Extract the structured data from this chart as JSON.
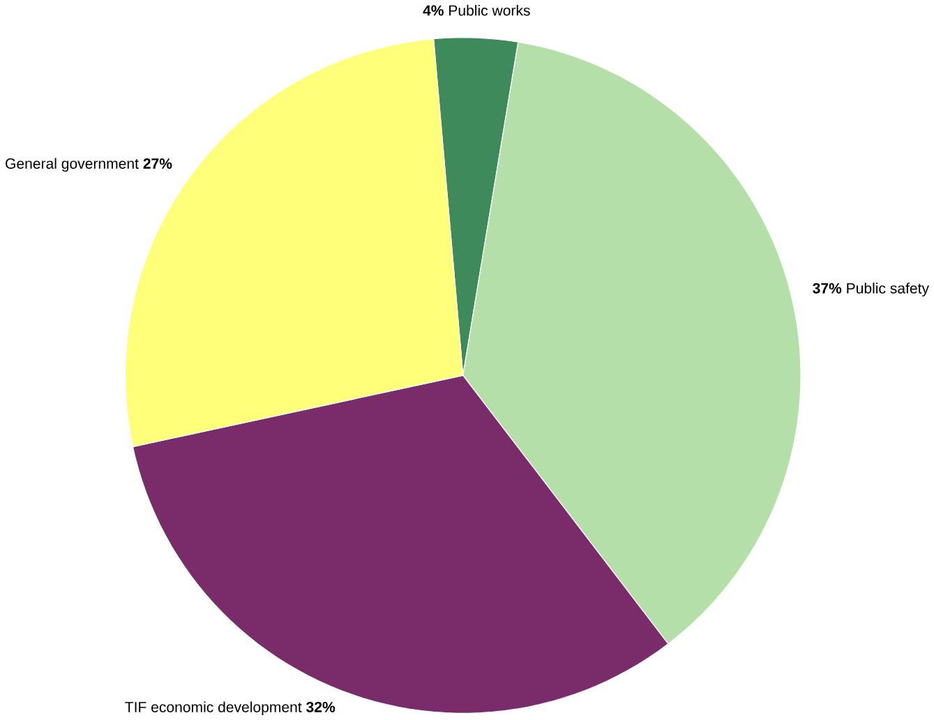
{
  "chart_data": {
    "type": "pie",
    "categories": [
      "Public works",
      "Public safety",
      "TIF economic development",
      "General government"
    ],
    "values": [
      4,
      37,
      32,
      27
    ],
    "colors": [
      "#3f8a5a",
      "#b5dfa8",
      "#7a2c6a",
      "#ffff7a"
    ],
    "value_labels": [
      "4%",
      "37%",
      "32%",
      "27%"
    ]
  }
}
